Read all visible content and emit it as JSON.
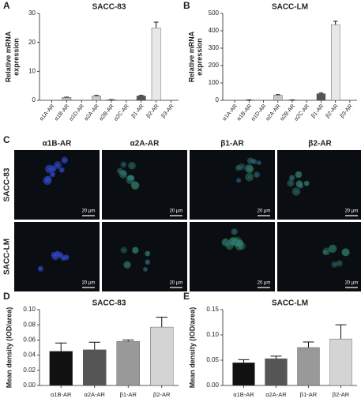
{
  "chart_data": [
    {
      "type": "bar",
      "panel": "A",
      "title": "SACC-83",
      "ylabel": [
        "Relative mRNA",
        "expression"
      ],
      "categories": [
        "α1A-AR",
        "α1B-AR",
        "α1D-AR",
        "α2A-AR",
        "α2B-AR",
        "α2C-AR",
        "β1-AR",
        "β2-AR",
        "β3-AR"
      ],
      "values": [
        0,
        1,
        0,
        1.5,
        0.2,
        0,
        1.5,
        25,
        0
      ],
      "errors": [
        0,
        0.1,
        0,
        0.2,
        0.05,
        0,
        0.2,
        2,
        0
      ],
      "colors": [
        "#777777",
        "#bbbbbb",
        "#777777",
        "#c8c8c8",
        "#999999",
        "#777777",
        "#555555",
        "#e8e8e8",
        "#777777"
      ],
      "ylim": [
        0,
        30
      ],
      "yticks": [
        0,
        10,
        20,
        30
      ]
    },
    {
      "type": "bar",
      "panel": "B",
      "title": "SACC-LM",
      "ylabel": [
        "Relative mRNA",
        "expression"
      ],
      "categories": [
        "α1A-AR",
        "α1B-AR",
        "α1D-AR",
        "α2A-AR",
        "α2B-AR",
        "α2C-AR",
        "β1-AR",
        "β2-AR",
        "β3-AR"
      ],
      "values": [
        0,
        2,
        0,
        30,
        2,
        0,
        38,
        435,
        0
      ],
      "errors": [
        0,
        0.5,
        0,
        3,
        0.5,
        0,
        4,
        20,
        0
      ],
      "colors": [
        "#777777",
        "#bbbbbb",
        "#777777",
        "#c8c8c8",
        "#999999",
        "#777777",
        "#555555",
        "#e8e8e8",
        "#777777"
      ],
      "ylim": [
        0,
        500
      ],
      "yticks": [
        0,
        100,
        200,
        300,
        400,
        500
      ]
    },
    {
      "type": "bar",
      "panel": "D",
      "title": "SACC-83",
      "ylabel": [
        "Mean density (IOD/area)"
      ],
      "categories": [
        "α1B-AR",
        "α2A-AR",
        "β1-AR",
        "β2-AR"
      ],
      "values": [
        0.045,
        0.047,
        0.058,
        0.077
      ],
      "errors": [
        0.011,
        0.01,
        0.002,
        0.013
      ],
      "colors": [
        "#111111",
        "#555555",
        "#999999",
        "#d4d4d4"
      ],
      "ylim": [
        0,
        0.1
      ],
      "yticks": [
        {
          "value": 0,
          "label": "0.00"
        },
        {
          "value": 0.02,
          "label": "0.02"
        },
        {
          "value": 0.04,
          "label": "0.04"
        },
        {
          "value": 0.06,
          "label": "0.06"
        },
        {
          "value": 0.08,
          "label": "0.08"
        },
        {
          "value": 0.1,
          "label": "0.10"
        }
      ]
    },
    {
      "type": "bar",
      "panel": "E",
      "title": "SACC-LM",
      "ylabel": [
        "Mean density (IOD/area)"
      ],
      "categories": [
        "α1B-AR",
        "α2A-AR",
        "β1-AR",
        "β2-AR"
      ],
      "values": [
        0.045,
        0.053,
        0.075,
        0.092
      ],
      "errors": [
        0.006,
        0.005,
        0.011,
        0.028
      ],
      "colors": [
        "#111111",
        "#555555",
        "#999999",
        "#d4d4d4"
      ],
      "ylim": [
        0,
        0.15
      ],
      "yticks": [
        {
          "value": 0,
          "label": "0.00"
        },
        {
          "value": 0.05,
          "label": "0.05"
        },
        {
          "value": 0.1,
          "label": "0.10"
        },
        {
          "value": 0.15,
          "label": "0.15"
        }
      ]
    }
  ],
  "panel_c": {
    "label": "C",
    "columns": [
      "α1B-AR",
      "α2A-AR",
      "β1-AR",
      "β2-AR"
    ],
    "rows": [
      "SACC-83",
      "SACC-LM"
    ],
    "scale_bar": "20 μm"
  }
}
